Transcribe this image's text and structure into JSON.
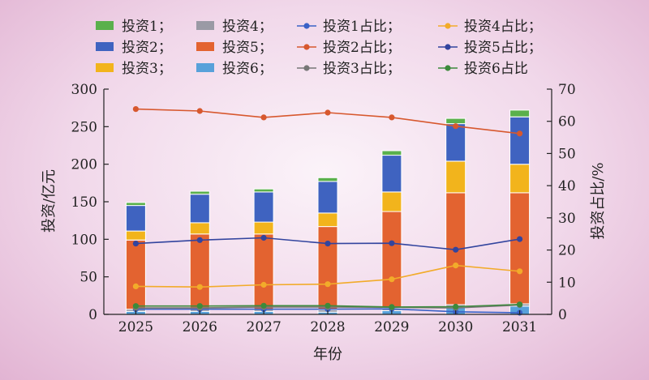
{
  "chart_data": {
    "type": "bar",
    "categories": [
      "2025",
      "2026",
      "2027",
      "2028",
      "2029",
      "2030",
      "2031"
    ],
    "stack_order": [
      "投资6",
      "投资4",
      "投资5",
      "投资3",
      "投资2",
      "投资1"
    ],
    "bar_series": [
      {
        "name": "投资1",
        "color": "#5ab04c",
        "values": [
          4,
          4,
          4,
          5,
          6,
          7,
          9
        ]
      },
      {
        "name": "投资2",
        "color": "#3f63c0",
        "values": [
          34,
          38,
          40,
          42,
          49,
          50,
          63
        ]
      },
      {
        "name": "投资3",
        "color": "#f2b41c",
        "values": [
          12,
          15,
          16,
          18,
          26,
          42,
          38
        ]
      },
      {
        "name": "投资4",
        "color": "#9a9aa5",
        "values": [
          3,
          3,
          3,
          3,
          3,
          3,
          3
        ]
      },
      {
        "name": "投资5",
        "color": "#e36330",
        "values": [
          92,
          100,
          100,
          111,
          129,
          149,
          148
        ]
      },
      {
        "name": "投资6",
        "color": "#58a1da",
        "values": [
          4,
          4,
          4,
          3,
          5,
          10,
          11
        ]
      }
    ],
    "line_series": [
      {
        "name": "投资1占比",
        "color": "#3a62c7",
        "values": [
          1.6,
          1.6,
          1.6,
          1.6,
          1.7,
          0.8,
          0.5
        ]
      },
      {
        "name": "投资2占比",
        "color": "#d7582e",
        "values": [
          63.8,
          63.2,
          61.2,
          62.7,
          61.2,
          58.5,
          56.2
        ]
      },
      {
        "name": "投资3占比",
        "color": "#777777",
        "values": [
          2.0,
          2.0,
          2.3,
          2.3,
          2.2,
          2.0,
          2.9
        ]
      },
      {
        "name": "投资4占比",
        "color": "#f2ab2a",
        "values": [
          8.7,
          8.5,
          9.2,
          9.4,
          10.9,
          15.2,
          13.4
        ]
      },
      {
        "name": "投资5占比",
        "color": "#32449e",
        "values": [
          22.0,
          23.1,
          23.8,
          22.0,
          22.1,
          20.1,
          23.4
        ]
      },
      {
        "name": "投资6占比",
        "color": "#3c8a3c",
        "values": [
          2.6,
          2.6,
          2.7,
          2.7,
          2.3,
          2.4,
          3.1
        ]
      }
    ],
    "xlabel": "年份",
    "ylabel": "投资/亿元",
    "ylabel_right": "投资占比/%",
    "ylim": [
      0,
      300
    ],
    "yticks": [
      0,
      50,
      100,
      150,
      200,
      250,
      300
    ],
    "ylim_right": [
      0,
      70
    ],
    "yticks_right": [
      0,
      10,
      20,
      30,
      40,
      50,
      60,
      70
    ],
    "grid": false,
    "legend_position": "top"
  },
  "legend": [
    {
      "label": "投资1；",
      "kind": "bar",
      "color": "#5ab04c"
    },
    {
      "label": "投资4；",
      "kind": "bar",
      "color": "#9a9aa5"
    },
    {
      "label": "投资1占比；",
      "kind": "line",
      "color": "#3a62c7"
    },
    {
      "label": "投资4占比；",
      "kind": "line",
      "color": "#f2ab2a"
    },
    {
      "label": "投资2；",
      "kind": "bar",
      "color": "#3f63c0"
    },
    {
      "label": "投资5；",
      "kind": "bar",
      "color": "#e36330"
    },
    {
      "label": "投资2占比；",
      "kind": "line",
      "color": "#d7582e"
    },
    {
      "label": "投资5占比；",
      "kind": "line",
      "color": "#32449e"
    },
    {
      "label": "投资3；",
      "kind": "bar",
      "color": "#f2b41c"
    },
    {
      "label": "投资6；",
      "kind": "bar",
      "color": "#58a1da"
    },
    {
      "label": "投资3占比；",
      "kind": "line",
      "color": "#777777"
    },
    {
      "label": "投资6占比",
      "kind": "line",
      "color": "#3c8a3c"
    }
  ]
}
